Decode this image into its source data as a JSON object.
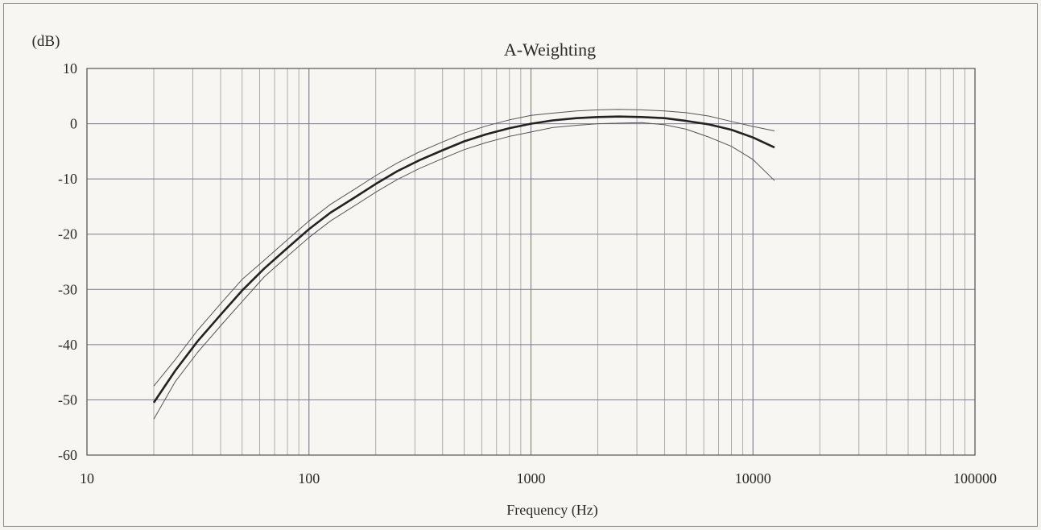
{
  "chart_data": {
    "type": "line",
    "title": "A-Weighting",
    "ylabel": "(dB)",
    "xlabel": "Frequency (Hz)",
    "x_scale": "log",
    "xlim": [
      10,
      100000
    ],
    "ylim": [
      -60,
      10
    ],
    "x_ticks": [
      10,
      100,
      1000,
      10000,
      100000
    ],
    "x_tick_labels": [
      "10",
      "100",
      "1000",
      "10000",
      "100000"
    ],
    "y_ticks": [
      10,
      0,
      -10,
      -20,
      -30,
      -40,
      -50,
      -60
    ],
    "y_tick_labels": [
      "10",
      "0",
      "-10",
      "-20",
      "-30",
      "-40",
      "-50",
      "-60"
    ],
    "grid": true,
    "colors": {
      "main": "#222222",
      "tolerance": "#555555",
      "grid_major": "#7a7a90",
      "grid_minor": "#9a9a9a"
    },
    "x": [
      20,
      25,
      31.5,
      40,
      50,
      63,
      80,
      100,
      125,
      160,
      200,
      250,
      315,
      400,
      500,
      630,
      800,
      1000,
      1250,
      1600,
      2000,
      2500,
      3150,
      4000,
      5000,
      6300,
      8000,
      10000,
      12500
    ],
    "series": [
      {
        "role": "main",
        "values": [
          -50.5,
          -44.7,
          -39.4,
          -34.6,
          -30.2,
          -26.2,
          -22.5,
          -19.1,
          -16.1,
          -13.4,
          -10.9,
          -8.6,
          -6.6,
          -4.8,
          -3.2,
          -1.9,
          -0.8,
          0.0,
          0.6,
          1.0,
          1.2,
          1.3,
          1.2,
          1.0,
          0.5,
          -0.1,
          -1.1,
          -2.5,
          -4.3
        ]
      },
      {
        "role": "upper-tolerance",
        "values": [
          -47.5,
          -42.7,
          -37.4,
          -32.6,
          -28.2,
          -24.7,
          -21.0,
          -17.6,
          -14.6,
          -11.9,
          -9.4,
          -7.1,
          -5.1,
          -3.3,
          -1.7,
          -0.4,
          0.7,
          1.5,
          1.9,
          2.3,
          2.5,
          2.6,
          2.5,
          2.3,
          2.0,
          1.4,
          0.4,
          -0.5,
          -1.3
        ]
      },
      {
        "role": "lower-tolerance",
        "values": [
          -53.5,
          -46.7,
          -41.4,
          -36.6,
          -32.2,
          -27.7,
          -24.0,
          -20.6,
          -17.6,
          -14.9,
          -12.4,
          -10.1,
          -8.1,
          -6.3,
          -4.7,
          -3.4,
          -2.3,
          -1.5,
          -0.7,
          -0.3,
          0.0,
          0.1,
          0.2,
          -0.2,
          -1.0,
          -2.4,
          -4.1,
          -6.5,
          -10.3
        ]
      }
    ]
  }
}
